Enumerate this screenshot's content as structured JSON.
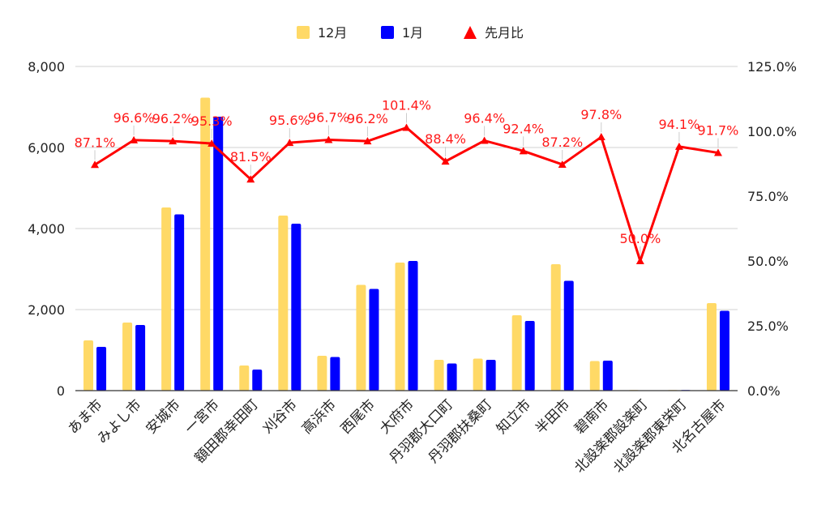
{
  "chart_data": {
    "type": "bar",
    "categories": [
      "あま市",
      "みよし市",
      "安城市",
      "一宮市",
      "額田郡幸田町",
      "刈谷市",
      "高浜市",
      "西尾市",
      "大府市",
      "丹羽郡大口町",
      "丹羽郡扶桑町",
      "知立市",
      "半田市",
      "碧南市",
      "北設楽郡設楽町",
      "北設楽郡東栄町",
      "北名古屋市"
    ],
    "series": [
      {
        "name": "12月",
        "type": "bar",
        "axis": "left",
        "color": "#ffd966",
        "values": [
          1240,
          1680,
          4520,
          7230,
          620,
          4320,
          860,
          2610,
          3160,
          760,
          790,
          1860,
          3120,
          730,
          15,
          15,
          2160
        ]
      },
      {
        "name": "1月",
        "type": "bar",
        "axis": "left",
        "color": "#0000ff",
        "values": [
          1080,
          1620,
          4350,
          6760,
          520,
          4120,
          830,
          2510,
          3200,
          670,
          760,
          1720,
          2710,
          740,
          8,
          14,
          1970
        ]
      },
      {
        "name": "先月比",
        "type": "line",
        "axis": "right",
        "color": "#ff0000",
        "values": [
          87.1,
          96.6,
          96.2,
          95.3,
          81.5,
          95.6,
          96.7,
          96.2,
          101.4,
          88.4,
          96.4,
          92.4,
          87.2,
          97.8,
          50.0,
          94.1,
          91.7
        ],
        "labels": [
          "87.1%",
          "96.6%",
          "96.2%",
          "95.3%",
          "81.5%",
          "95.6%",
          "96.7%",
          "96.2%",
          "101.4%",
          "88.4%",
          "96.4%",
          "92.4%",
          "87.2%",
          "97.8%",
          "50.0%",
          "94.1%",
          "91.7%"
        ]
      }
    ],
    "y_left": {
      "min": 0,
      "max": 8000,
      "ticks": [
        0,
        2000,
        4000,
        6000,
        8000
      ],
      "tick_labels": [
        "0",
        "2,000",
        "4,000",
        "6,000",
        "8,000"
      ]
    },
    "y_right": {
      "min": 0,
      "max": 125,
      "ticks": [
        0,
        25,
        50,
        75,
        100,
        125
      ],
      "tick_labels": [
        "0.0%",
        "25.0%",
        "50.0%",
        "75.0%",
        "100.0%",
        "125.0%"
      ]
    },
    "grid": true,
    "legend_position": "top-center",
    "title": "",
    "xlabel": "",
    "ylabel": ""
  }
}
